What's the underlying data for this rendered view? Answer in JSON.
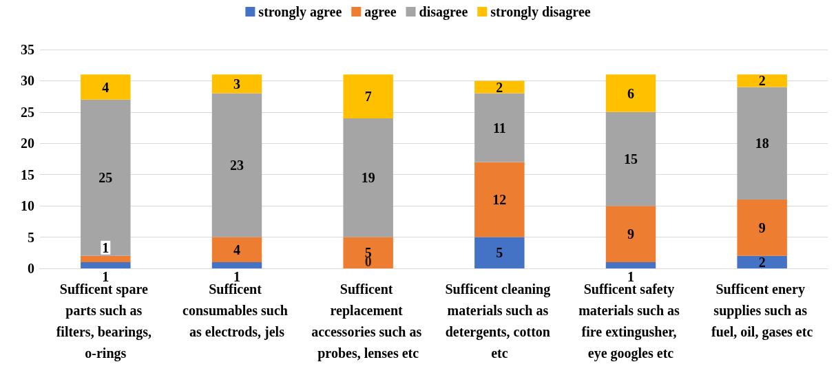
{
  "chart_data": {
    "type": "bar",
    "stacked": true,
    "categories": [
      "Sufficent spare parts such as filters, bearings, o-rings",
      "Sufficent consumables such as electrods, jels",
      "Sufficent replacement accessories such as probes, lenses etc",
      "Sufficent cleaning materials such as detergents, cotton etc",
      "Sufficent safety materials such as fire extingusher, eye googles etc",
      "Sufficent enery supplies such as fuel, oil, gases etc"
    ],
    "series": [
      {
        "name": "strongly agree",
        "color": "#4472c4",
        "values": [
          1,
          1,
          0,
          5,
          1,
          2
        ],
        "value_labels": [
          "1",
          "1",
          null,
          "5",
          "1",
          "2"
        ]
      },
      {
        "name": "agree",
        "color": "#ed7d31",
        "values": [
          1,
          4,
          5,
          12,
          9,
          9
        ],
        "value_labels": [
          "1",
          "4",
          "5",
          "12",
          "9",
          "9"
        ]
      },
      {
        "name": "disagree",
        "color": "#a5a5a5",
        "values": [
          25,
          23,
          19,
          11,
          15,
          18
        ],
        "value_labels": [
          "25",
          "23",
          "19",
          "11",
          "15",
          "18"
        ]
      },
      {
        "name": "strongly disagree",
        "color": "#ffc000",
        "values": [
          4,
          3,
          7,
          2,
          6,
          2
        ],
        "value_labels": [
          "4",
          "3",
          "7",
          "2",
          "6",
          "2"
        ]
      }
    ],
    "annotations": [
      {
        "text": "0",
        "x": "Sufficent replacement accessories such as probes, lenses etc",
        "y": 0
      }
    ],
    "ylim": [
      0,
      35
    ],
    "yticks": [
      0,
      5,
      10,
      15,
      20,
      25,
      30,
      35
    ],
    "grid": "y",
    "legend": "top"
  }
}
